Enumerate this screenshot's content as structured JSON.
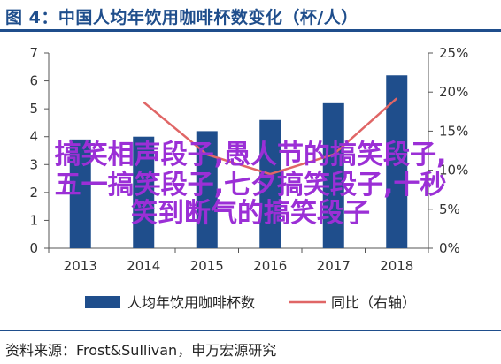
{
  "title": "图 4：中国人均年饮用咖啡杯数变化（杯/人）",
  "source": "资料来源：Frost&Sullivan，申万宏源研究",
  "overlay_lines": [
    "搞笑相声段子,愚人节的搞笑段子,",
    "五一搞笑段子,七夕搞笑段子,十秒",
    "笑到断气的搞笑段子"
  ],
  "colors": {
    "bar": "#1f4e8c",
    "line": "#e06666",
    "title": "#1f4e8c",
    "overlay": "#9b2fd6"
  },
  "chart_data": {
    "type": "bar",
    "categories": [
      "2013",
      "2014",
      "2015",
      "2016",
      "2017",
      "2018"
    ],
    "series": [
      {
        "name": "人均年饮用咖啡杯数",
        "type": "bar",
        "axis": "left",
        "values": [
          3.9,
          4.0,
          4.2,
          4.6,
          5.2,
          6.2
        ]
      },
      {
        "name": "同比（右轴）",
        "type": "line",
        "axis": "right",
        "values": [
          null,
          18.7,
          12.0,
          9.5,
          12.0,
          19.2
        ]
      }
    ],
    "y_left": {
      "min": 0,
      "max": 7,
      "ticks": [
        "0",
        "1",
        "2",
        "3",
        "4",
        "5",
        "6",
        "7"
      ]
    },
    "y_right": {
      "min": 0,
      "max": 25,
      "ticks": [
        "0%",
        "5%",
        "10%",
        "15%",
        "20%",
        "25%"
      ]
    },
    "legend_position": "bottom"
  }
}
